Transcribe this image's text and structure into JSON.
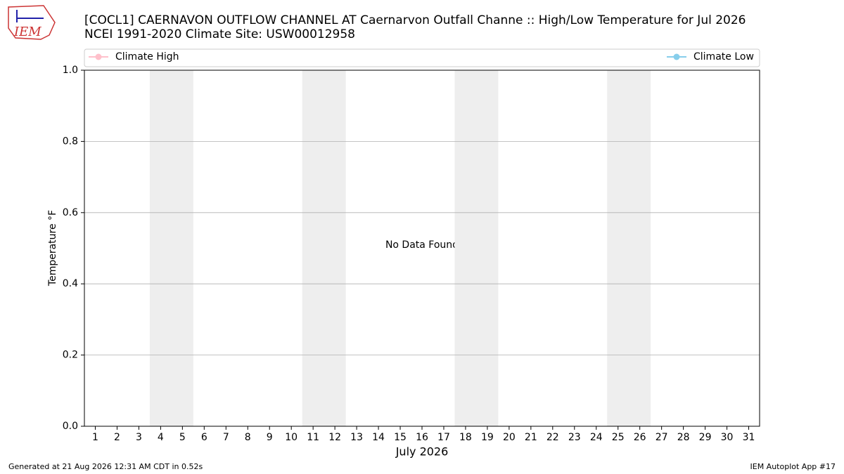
{
  "logo_text": "IEM",
  "chart_data": {
    "type": "line",
    "title": "[COCL1] CAERNAVON OUTFLOW CHANNEL  AT Caernarvon Outfall Channe :: High/Low Temperature for Jul 2026",
    "subtitle": "NCEI 1991-2020 Climate Site: USW00012958",
    "x_label": "July 2026",
    "y_label": "Temperature °F",
    "annotation": "No Data Found",
    "x": [
      1,
      2,
      3,
      4,
      5,
      6,
      7,
      8,
      9,
      10,
      11,
      12,
      13,
      14,
      15,
      16,
      17,
      18,
      19,
      20,
      21,
      22,
      23,
      24,
      25,
      26,
      27,
      28,
      29,
      30,
      31
    ],
    "series": [
      {
        "name": "Climate High",
        "color": "#ffc0cb",
        "values": [
          null,
          null,
          null,
          null,
          null,
          null,
          null,
          null,
          null,
          null,
          null,
          null,
          null,
          null,
          null,
          null,
          null,
          null,
          null,
          null,
          null,
          null,
          null,
          null,
          null,
          null,
          null,
          null,
          null,
          null,
          null
        ]
      },
      {
        "name": "Climate Low",
        "color": "#87ceeb",
        "values": [
          null,
          null,
          null,
          null,
          null,
          null,
          null,
          null,
          null,
          null,
          null,
          null,
          null,
          null,
          null,
          null,
          null,
          null,
          null,
          null,
          null,
          null,
          null,
          null,
          null,
          null,
          null,
          null,
          null,
          null,
          null
        ]
      }
    ],
    "shaded_spans": [
      [
        3.5,
        5.5
      ],
      [
        10.5,
        12.5
      ],
      [
        17.5,
        19.5
      ],
      [
        24.5,
        26.5
      ]
    ],
    "shade_color": "#eeeeee",
    "xlim": [
      0.5,
      31.5
    ],
    "xticks": [
      1,
      2,
      3,
      4,
      5,
      6,
      7,
      8,
      9,
      10,
      11,
      12,
      13,
      14,
      15,
      16,
      17,
      18,
      19,
      20,
      21,
      22,
      23,
      24,
      25,
      26,
      27,
      28,
      29,
      30,
      31
    ],
    "ylim": [
      0,
      1
    ],
    "yticks": [
      {
        "value": 0,
        "label": "0.0"
      },
      0.2,
      0.4,
      0.6,
      0.8,
      {
        "value": 1,
        "label": "1.0"
      }
    ],
    "grid": true,
    "footer_left": "Generated at 21 Aug 2026 12:31 AM CDT in 0.52s",
    "footer_right": "IEM Autoplot App #17"
  }
}
